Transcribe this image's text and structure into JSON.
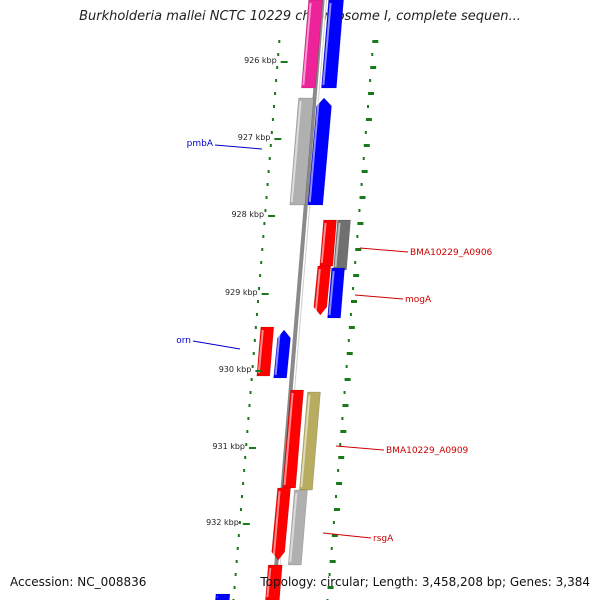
{
  "title": "Burkholderia mallei NCTC 10229 chromosome I, complete sequen...",
  "footer": {
    "accession": "Accession: NC_008836",
    "stats": "Topology: circular; Length: 3,458,208 bp; Genes: 3,384"
  },
  "ruler": [
    {
      "label": "926 kbp"
    },
    {
      "label": "927 kbp"
    },
    {
      "label": "928 kbp"
    },
    {
      "label": "929 kbp"
    },
    {
      "label": "930 kbp"
    },
    {
      "label": "931 kbp"
    },
    {
      "label": "932 kbp"
    }
  ],
  "gene_labels": [
    {
      "text": "pmbA",
      "color": "#0000cc"
    },
    {
      "text": "BMA10229_A0906",
      "color": "#cc0000"
    },
    {
      "text": "mogA",
      "color": "#cc0000"
    },
    {
      "text": "orn",
      "color": "#0000cc"
    },
    {
      "text": "BMA10229_A0909",
      "color": "#cc0000"
    },
    {
      "text": "rsgA",
      "color": "#cc0000"
    }
  ],
  "colors": {
    "forward_cds": "#ff0000",
    "reverse_cds": "#0000ff",
    "pink_feature": "#ee2299",
    "gray_feature": "#b0b0b0",
    "dark_gray_feature": "#707070",
    "olive_feature": "#b8ac60",
    "backbone": "#8a8a8a",
    "tick_green": "#1a7a1a"
  }
}
